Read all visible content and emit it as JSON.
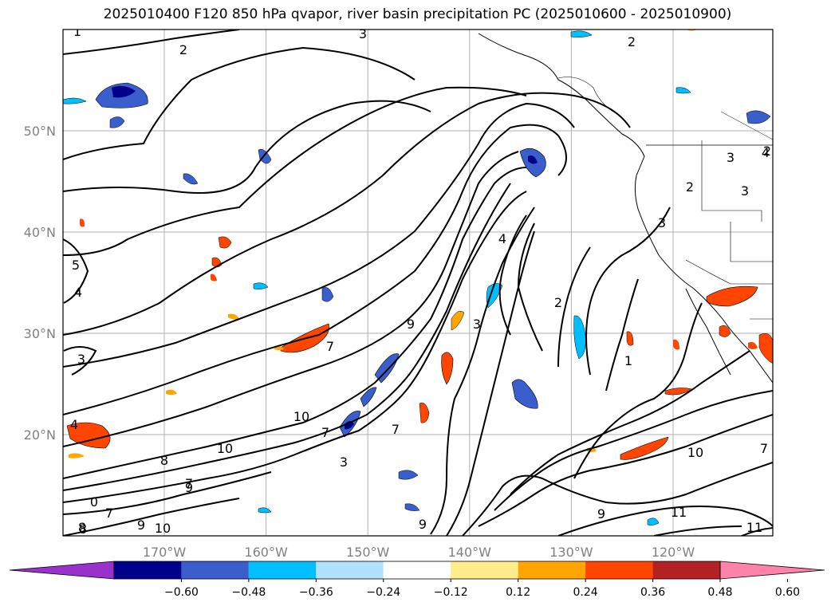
{
  "title": "2025010400 F120 850 hPa qvapor, river basin precipitation PC (2025010600 - 2025010900)",
  "map": {
    "lon_ticks": [
      {
        "value": -170,
        "label": "170°W"
      },
      {
        "value": -160,
        "label": "160°W"
      },
      {
        "value": -150,
        "label": "150°W"
      },
      {
        "value": -140,
        "label": "140°W"
      },
      {
        "value": -130,
        "label": "130°W"
      },
      {
        "value": -120,
        "label": "120°W"
      }
    ],
    "lat_ticks": [
      {
        "value": 20,
        "label": "20°N"
      },
      {
        "value": 30,
        "label": "30°N"
      },
      {
        "value": 40,
        "label": "40°N"
      },
      {
        "value": 50,
        "label": "50°N"
      }
    ],
    "grid": true,
    "contour_labels": [
      "1",
      "2",
      "3",
      "2",
      "3",
      "4",
      "5",
      "4",
      "3",
      "3",
      "7",
      "9",
      "4",
      "3",
      "2",
      "1",
      "2",
      "7",
      "10",
      "8",
      "10",
      "9",
      "7",
      "4",
      "3",
      "8",
      "7",
      "9",
      "0",
      "7",
      "8",
      "9",
      "10",
      "9",
      "10",
      "11",
      "11",
      "7",
      "3",
      "2"
    ]
  },
  "colorbar": {
    "colors": [
      "#9932cc",
      "#00008b",
      "#3a5fcd",
      "#00bfff",
      "#b0e2ff",
      "#ffffff",
      "#ffec8b",
      "#ffa500",
      "#ff4500",
      "#b22222",
      "#ff82ab"
    ],
    "ticks": [
      "−0.60",
      "−0.48",
      "−0.36",
      "−0.24",
      "−0.12",
      "0.12",
      "0.24",
      "0.36",
      "0.48",
      "0.60"
    ]
  }
}
